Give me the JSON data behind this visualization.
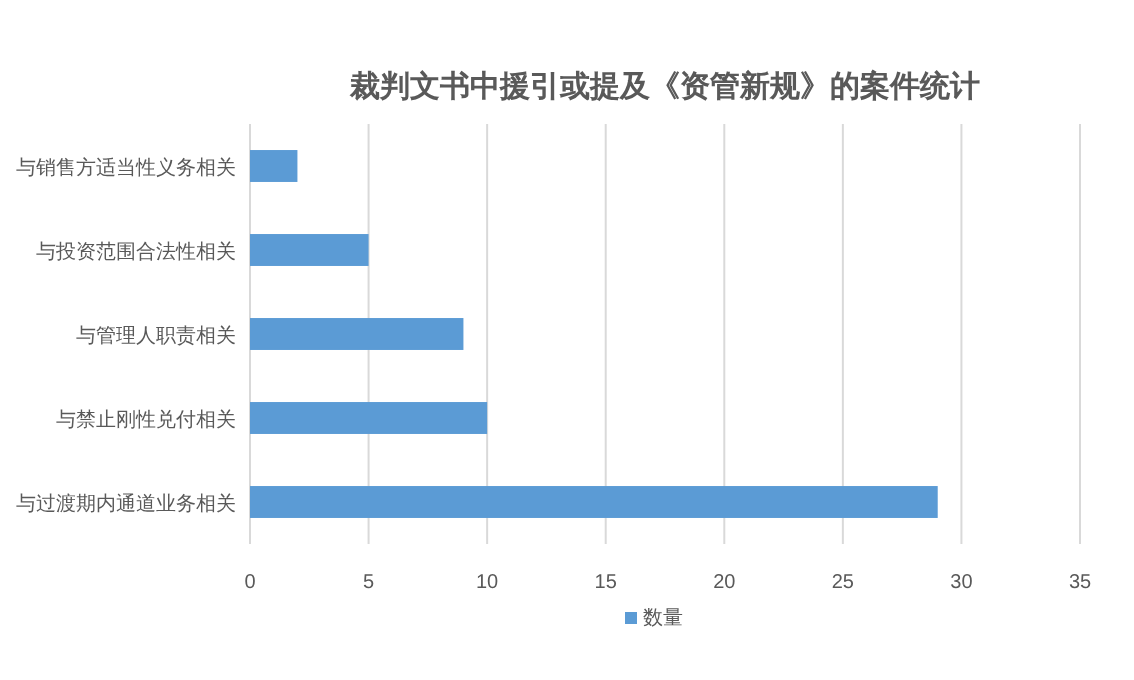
{
  "chart_data": {
    "type": "bar",
    "orientation": "horizontal",
    "title": "裁判文书中援引或提及《资管新规》的案件统计",
    "categories": [
      "与销售方适当性义务相关",
      "与投资范围合法性相关",
      "与管理人职责相关",
      "与禁止刚性兑付相关",
      "与过渡期内通道业务相关"
    ],
    "series": [
      {
        "name": "数量",
        "color": "#5b9bd5",
        "values": [
          2,
          5,
          9,
          10,
          29
        ]
      }
    ],
    "xlim": [
      0,
      35
    ],
    "xticks": [
      0,
      5,
      10,
      15,
      20,
      25,
      30,
      35
    ],
    "grid": "x",
    "legend": "bottom"
  }
}
